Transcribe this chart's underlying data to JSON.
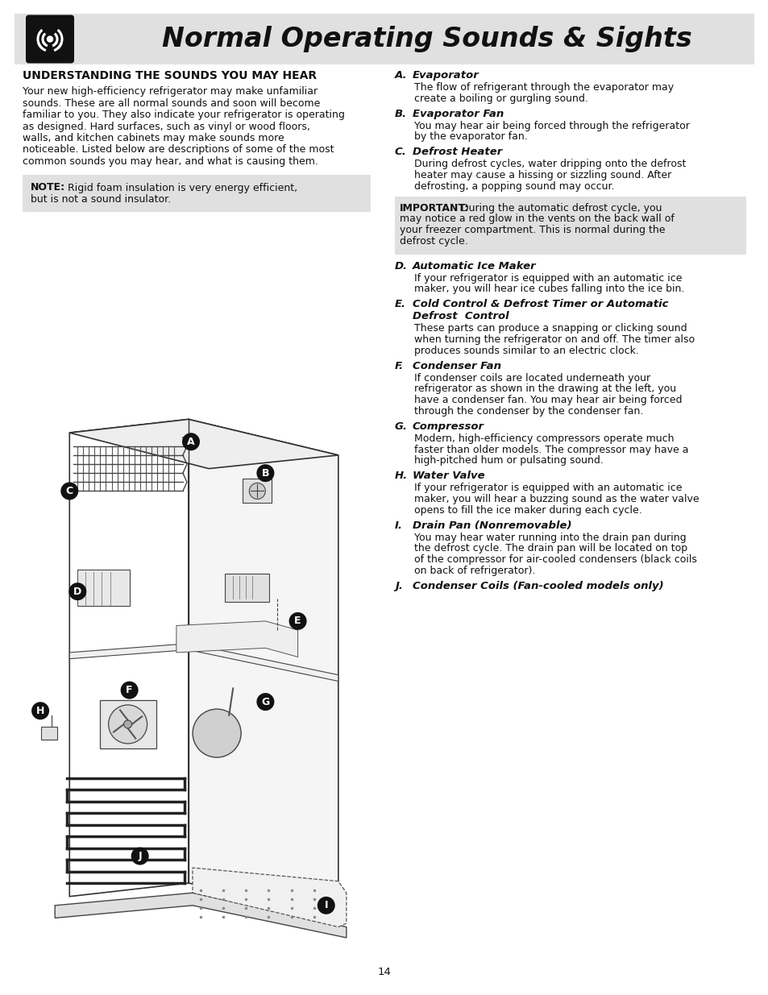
{
  "page_bg": "#ffffff",
  "header_bg": "#e0e0e0",
  "note_bg": "#e0e0e0",
  "important_bg": "#e0e0e0",
  "header_title": "Normal Operating Sounds & Sights",
  "left_heading": "UNDERSTANDING THE SOUNDS YOU MAY HEAR",
  "left_body_lines": [
    "Your new high-efficiency refrigerator may make unfamiliar",
    "sounds. These are all normal sounds and soon will become",
    "familiar to you. They also indicate your refrigerator is operating",
    "as designed. Hard surfaces, such as vinyl or wood floors,",
    "walls, and kitchen cabinets may make sounds more",
    "noticeable. Listed below are descriptions of some of the most",
    "common sounds you may hear, and what is causing them."
  ],
  "note_bold": "NOTE:",
  "note_line1": "  Rigid foam insulation is very energy efficient,",
  "note_line2": "but is not a sound insulator.",
  "important_bold": "IMPORTANT:",
  "important_line1": " During the automatic defrost cycle, you",
  "important_line2": "may notice a red glow in the vents on the back wall of",
  "important_line3": "your freezer compartment. This is normal during the",
  "important_line4": "defrost cycle.",
  "sections": [
    {
      "letter": "A.",
      "title": "Evaporator",
      "body_lines": [
        "The flow of refrigerant through the evaporator may",
        "create a boiling or gurgling sound."
      ]
    },
    {
      "letter": "B.",
      "title": "Evaporator Fan",
      "body_lines": [
        "You may hear air being forced through the refrigerator",
        "by the evaporator fan."
      ]
    },
    {
      "letter": "C.",
      "title": "Defrost Heater",
      "body_lines": [
        "During defrost cycles, water dripping onto the defrost",
        "heater may cause a hissing or sizzling sound. After",
        "defrosting, a popping sound may occur."
      ]
    },
    {
      "letter": "D.",
      "title": "Automatic Ice Maker",
      "body_lines": [
        "If your refrigerator is equipped with an automatic ice",
        "maker, you will hear ice cubes falling into the ice bin."
      ]
    },
    {
      "letter": "E.",
      "title": "Cold Control & Defrost Timer or Automatic",
      "title2": "Defrost  Control",
      "body_lines": [
        "These parts can produce a snapping or clicking sound",
        "when turning the refrigerator on and off. The timer also",
        "produces sounds similar to an electric clock."
      ]
    },
    {
      "letter": "F.",
      "title": "Condenser Fan",
      "body_lines": [
        "If condenser coils are located underneath your",
        "refrigerator as shown in the drawing at the left, you",
        "have a condenser fan. You may hear air being forced",
        "through the condenser by the condenser fan."
      ]
    },
    {
      "letter": "G.",
      "title": "Compressor",
      "body_lines": [
        "Modern, high-efficiency compressors operate much",
        "faster than older models. The compressor may have a",
        "high-pitched hum or pulsating sound."
      ]
    },
    {
      "letter": "H.",
      "title": "Water Valve",
      "body_lines": [
        "If your refrigerator is equipped with an automatic ice",
        "maker, you will hear a buzzing sound as the water valve",
        "opens to fill the ice maker during each cycle."
      ]
    },
    {
      "letter": "I.",
      "title": "Drain Pan (Nonremovable)",
      "body_lines": [
        "You may hear water running into the drain pan during",
        "the defrost cycle. The drain pan will be located on top",
        "of the compressor for air-cooled condensers (black coils",
        "on back of refrigerator)."
      ]
    },
    {
      "letter": "J.",
      "title": "Condenser Coils (Fan-cooled models only)",
      "body_lines": []
    }
  ],
  "page_number": "14"
}
